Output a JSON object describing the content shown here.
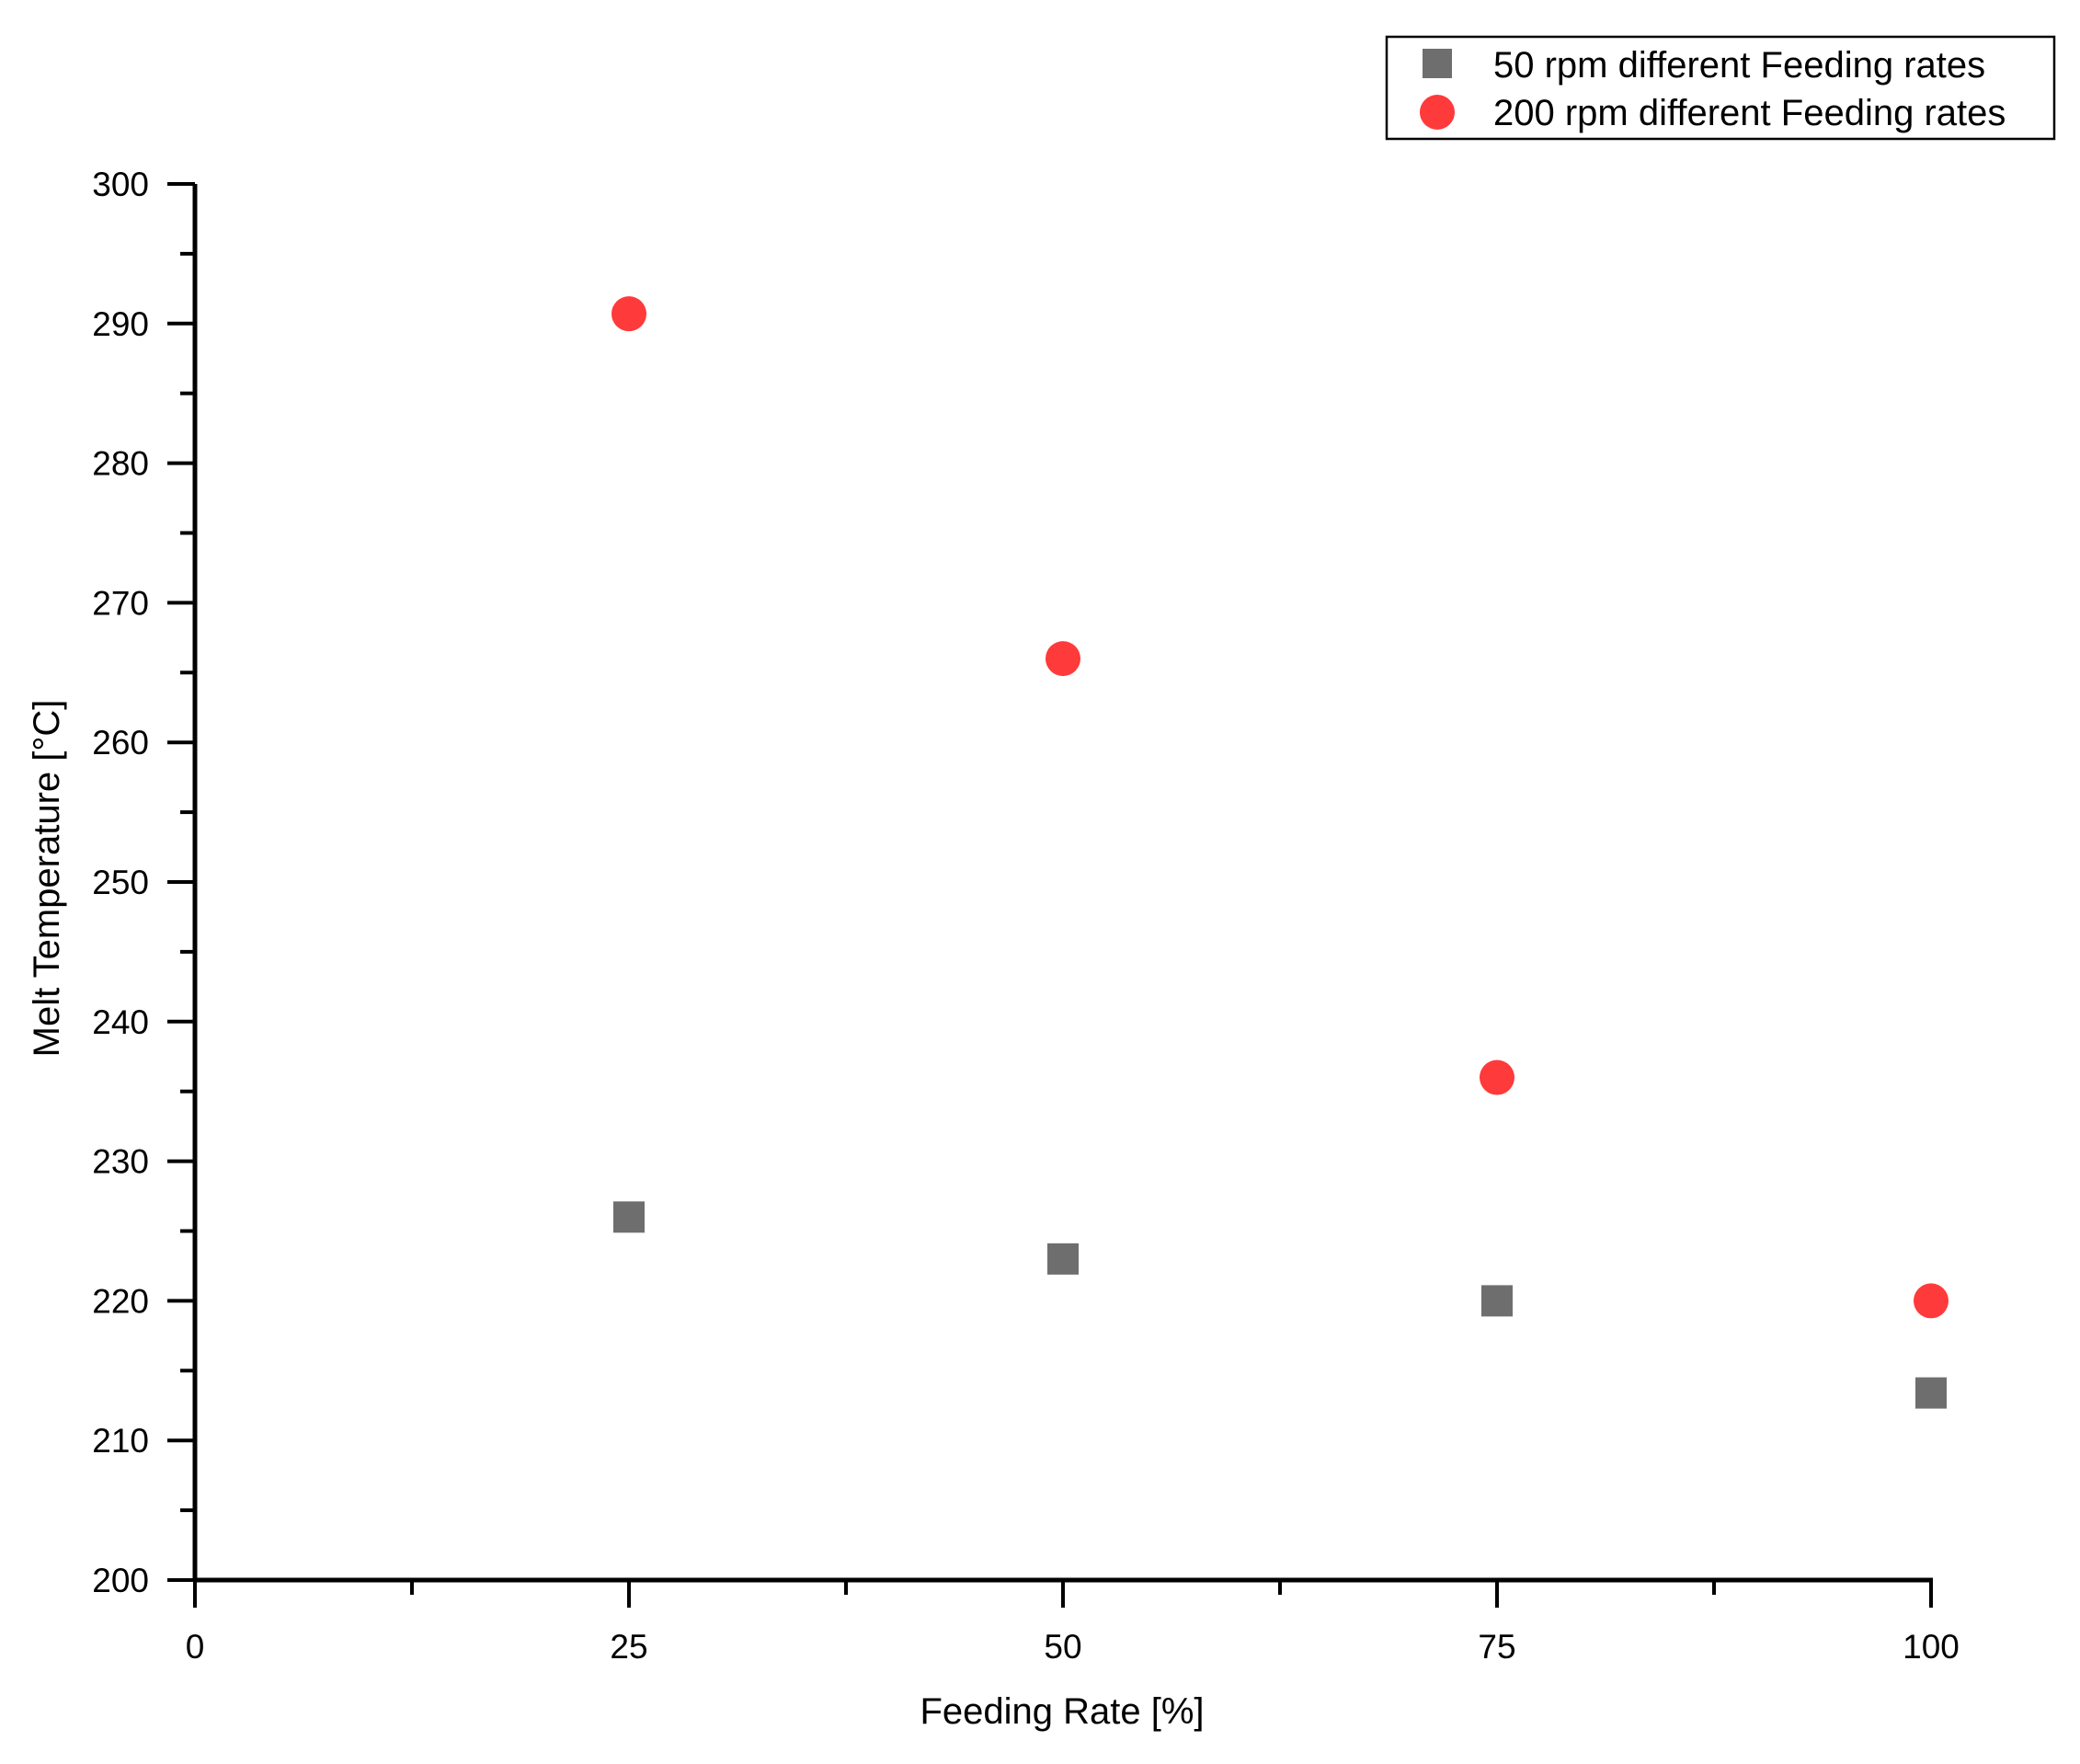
{
  "chart_data": {
    "type": "scatter",
    "title": "",
    "xlabel": "Feeding Rate [%]",
    "ylabel": "Melt Temperature [°C]",
    "xlim": [
      0,
      100
    ],
    "ylim": [
      200,
      300
    ],
    "x_major_ticks": [
      0,
      25,
      50,
      75,
      100
    ],
    "x_tick_labels": [
      "0",
      "25",
      "50",
      "75",
      "100"
    ],
    "x_minor_ticks": [
      12.5,
      37.5,
      62.5,
      87.5
    ],
    "y_major_ticks": [
      200,
      210,
      220,
      230,
      240,
      250,
      260,
      270,
      280,
      290,
      300
    ],
    "y_tick_labels": [
      "200",
      "210",
      "220",
      "230",
      "240",
      "250",
      "260",
      "270",
      "280",
      "290",
      "300"
    ],
    "y_minor_ticks": [
      205,
      215,
      225,
      235,
      245,
      255,
      265,
      275,
      285,
      295
    ],
    "grid": false,
    "legend_position": "top-right",
    "series": [
      {
        "name": "50 rpm different Feeding rates",
        "marker": "square",
        "color": "#6e6e6e",
        "x": [
          25,
          50,
          75,
          100
        ],
        "y": [
          226,
          223,
          220,
          213.4
        ]
      },
      {
        "name": "200 rpm different Feeding rates",
        "marker": "circle",
        "color": "#ff3a3a",
        "x": [
          25,
          50,
          75,
          100
        ],
        "y": [
          290.7,
          266,
          236,
          220
        ]
      }
    ]
  }
}
